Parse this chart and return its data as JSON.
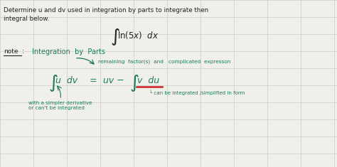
{
  "bg_color": "#f0f0eb",
  "grid_color": "#cccccc",
  "text_color_black": "#222222",
  "text_color_teal": "#1a7a5a",
  "text_color_red": "#cc2222",
  "title_line1": "Determine u and dv used in integration by parts to integrate then",
  "title_line2": "integral below.",
  "note_label": "note",
  "note_text": "Integration  by  Parts",
  "arrow_text": "remaining  factor(s)  and   complicated  expresson",
  "left_label": "with a simpler derivative\nor can't be integrated",
  "right_label": "└ can be integrated /simplified in form"
}
